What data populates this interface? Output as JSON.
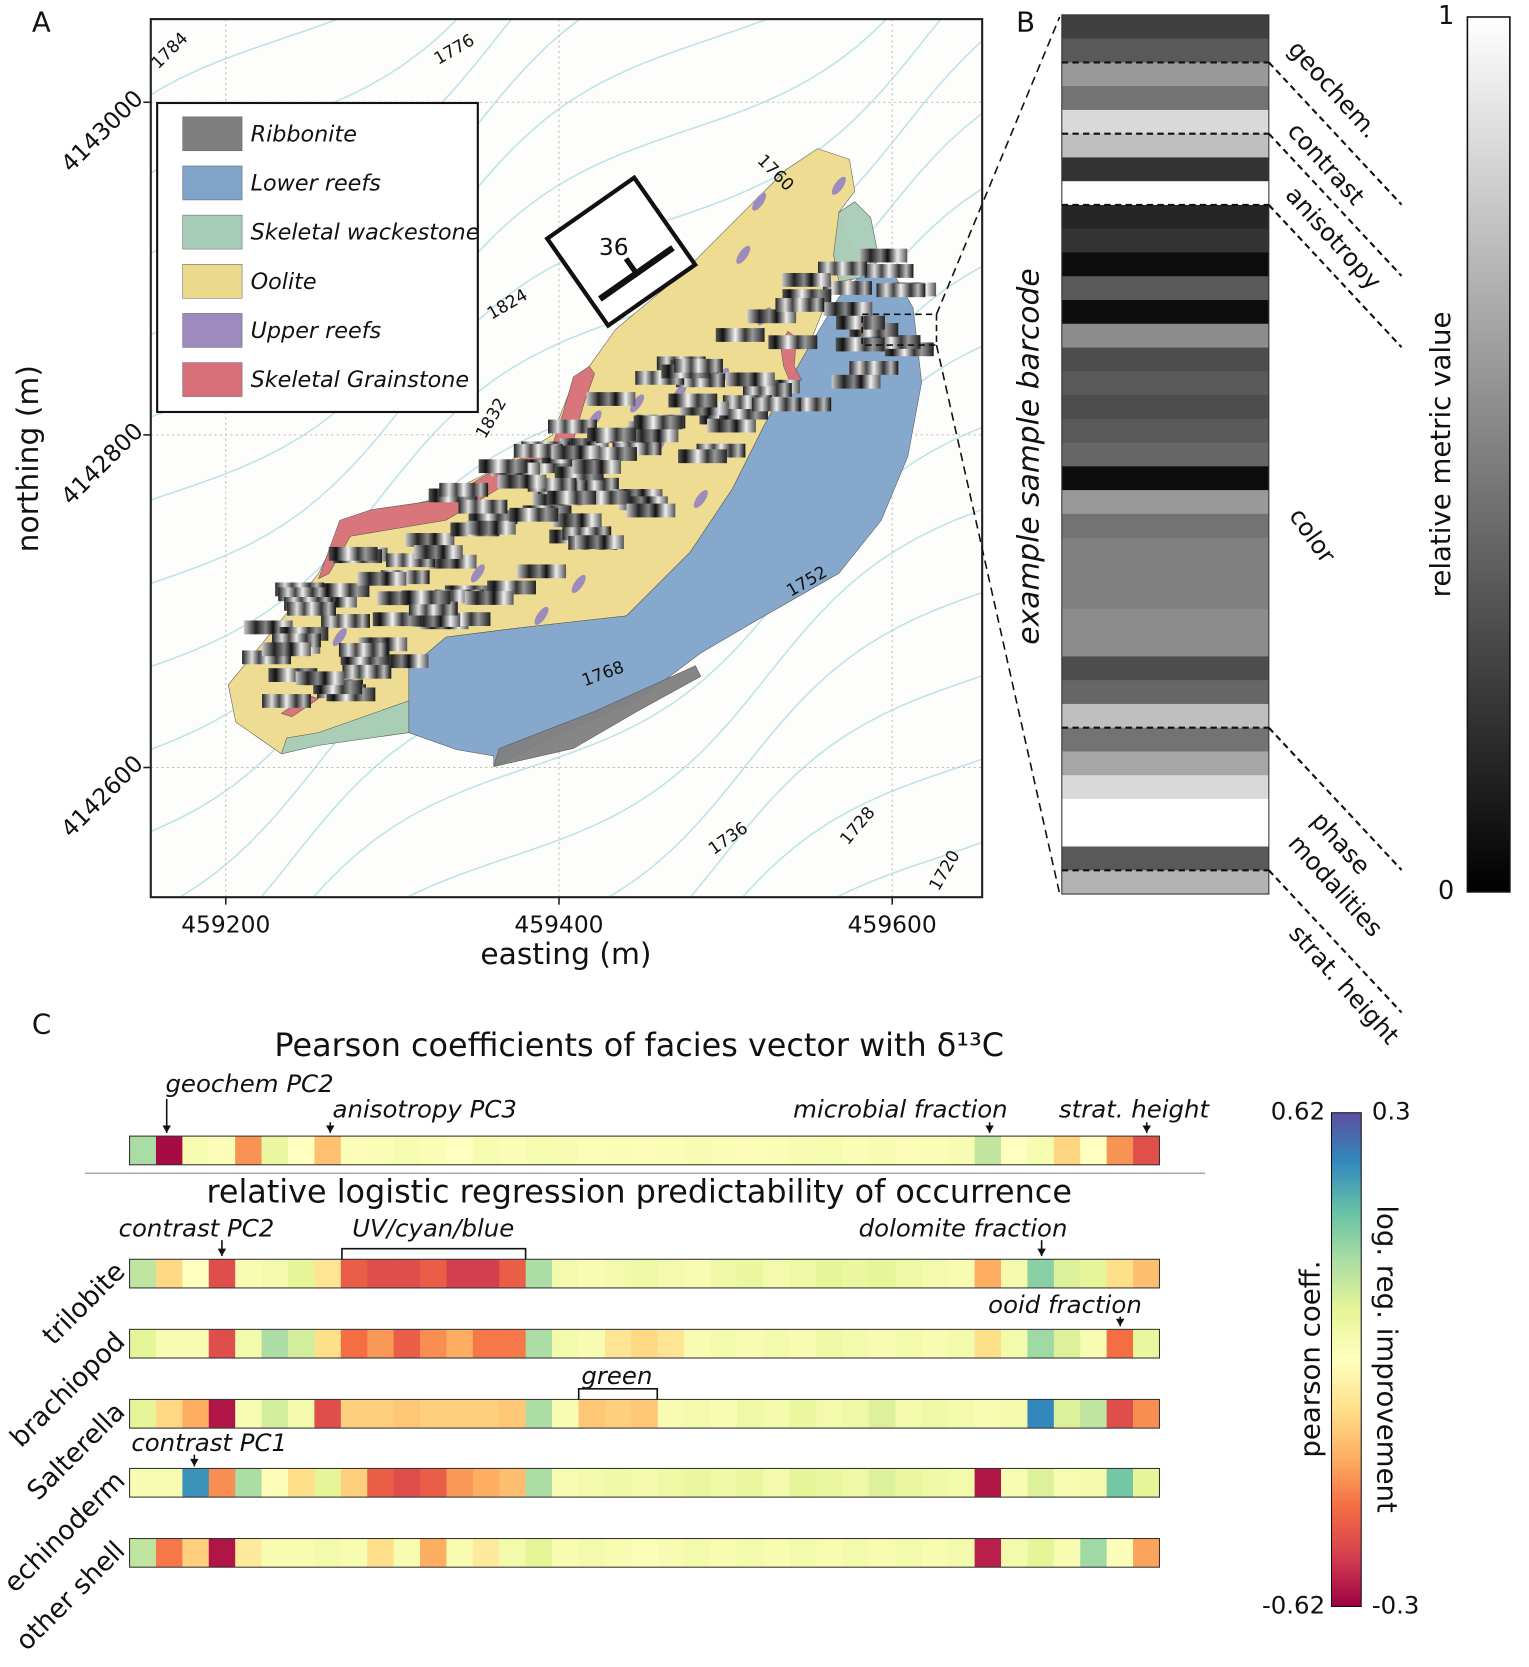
{
  "chart_data": [
    {
      "type": "map",
      "panel": "A",
      "xlabel": "easting (m)",
      "ylabel": "northing (m)",
      "xlim": [
        459155,
        459654
      ],
      "ylim": [
        4142522,
        4143050
      ],
      "xticks": [
        459200,
        459400,
        459600
      ],
      "yticks": [
        4142600,
        4142800,
        4143000
      ],
      "grid": true,
      "legend": [
        {
          "name": "Ribbonite",
          "color": "#7f7f7f"
        },
        {
          "name": "Lower reefs",
          "color": "#7fa3c9"
        },
        {
          "name": "Skeletal wackestone",
          "color": "#a7ccb7"
        },
        {
          "name": "Oolite",
          "color": "#ecda8c"
        },
        {
          "name": "Upper reefs",
          "color": "#9e8bbd"
        },
        {
          "name": "Skeletal Grainstone",
          "color": "#d8707a"
        }
      ],
      "contour_labels": [
        "1784",
        "1776",
        "1760",
        "1824",
        "1832",
        "1736",
        "1728",
        "1720",
        "1768",
        "1752"
      ],
      "strike_dip_label": "36"
    },
    {
      "type": "barcode",
      "panel": "B",
      "ylabel": "example sample barcode",
      "colormap": "gray",
      "values": [
        0.25,
        0.35,
        0.6,
        0.45,
        0.85,
        0.75,
        0.2,
        1.0,
        0.15,
        0.2,
        0.05,
        0.35,
        0.05,
        0.55,
        0.3,
        0.35,
        0.3,
        0.35,
        0.4,
        0.05,
        0.6,
        0.45,
        0.5,
        0.5,
        0.5,
        0.55,
        0.55,
        0.3,
        0.4,
        0.75,
        0.45,
        0.65,
        0.85,
        1.0,
        1.0,
        0.35,
        0.7
      ],
      "groups": [
        "geochem.",
        "contrast",
        "anisotropy",
        "color",
        "phase",
        "modalities",
        "strat. height"
      ],
      "colorbar_label": "relative metric value",
      "clim": [
        0,
        1
      ],
      "cticks": [
        0,
        1
      ]
    },
    {
      "type": "heatmap",
      "panel": "C",
      "title": "Pearson coefficients of facies vector with δ¹³C",
      "colormap": "Spectral",
      "values": [
        0.25,
        -0.6,
        0.05,
        0.02,
        -0.3,
        0.1,
        0,
        -0.2,
        0.02,
        0.03,
        0.05,
        0.03,
        0,
        0.05,
        0.03,
        0.05,
        0.04,
        0.02,
        0.03,
        0.02,
        0.03,
        0.04,
        0.03,
        0.02,
        0.03,
        0.04,
        0.05,
        0.03,
        0.04,
        0.02,
        0.03,
        0.04,
        0.2,
        0,
        0.05,
        -0.15,
        0,
        -0.3,
        -0.45
      ],
      "annotations": [
        "geochem PC2",
        "anisotropy PC3",
        "microbial fraction",
        "strat. height"
      ],
      "colorbar_label": "pearson coeff.",
      "clim": [
        -0.62,
        0.62
      ],
      "cticks": [
        -0.62,
        0.62
      ]
    },
    {
      "type": "heatmap",
      "title": "relative logistic regression predictability of occurrence",
      "colormap": "Spectral",
      "rows": [
        {
          "name": "trilobite",
          "values": [
            0.1,
            -0.07,
            0,
            -0.22,
            0.02,
            0.03,
            0.06,
            -0.05,
            -0.2,
            -0.22,
            -0.22,
            -0.2,
            -0.24,
            -0.24,
            -0.2,
            0.12,
            0.03,
            0.02,
            0.03,
            0.04,
            0.03,
            0.02,
            0.04,
            0.05,
            0.03,
            0.04,
            0.06,
            0.05,
            0.06,
            0.04,
            0.03,
            0.02,
            -0.12,
            0.03,
            0.15,
            0.07,
            0.06,
            -0.06,
            -0.1
          ]
        },
        {
          "name": "brachiopod",
          "values": [
            0.06,
            0.02,
            0.02,
            -0.22,
            0.03,
            0.12,
            0.08,
            -0.06,
            -0.18,
            -0.14,
            -0.2,
            -0.15,
            -0.12,
            -0.17,
            -0.17,
            0.12,
            0.03,
            0.02,
            -0.05,
            -0.07,
            -0.05,
            0.02,
            0.03,
            0.02,
            0.03,
            0.02,
            0.04,
            0.03,
            0.02,
            0.03,
            0.02,
            0.03,
            -0.06,
            0.03,
            0.13,
            0.07,
            0.02,
            -0.18,
            0.05
          ]
        },
        {
          "name": "Salterella",
          "values": [
            0.06,
            -0.07,
            -0.12,
            -0.28,
            0.02,
            0.08,
            0.03,
            -0.22,
            -0.08,
            -0.08,
            -0.09,
            -0.08,
            -0.08,
            -0.08,
            -0.09,
            0.12,
            0.02,
            -0.09,
            -0.08,
            -0.09,
            0.02,
            0.03,
            0.02,
            0.04,
            0.03,
            0.05,
            0.03,
            0.04,
            0.07,
            0.03,
            0.04,
            0.03,
            0.02,
            0.03,
            0.24,
            0.07,
            0.1,
            -0.22,
            -0.15
          ]
        },
        {
          "name": "echinoderm",
          "values": [
            0.02,
            0.02,
            0.23,
            -0.15,
            0.12,
            0.01,
            -0.06,
            0.06,
            -0.08,
            -0.2,
            -0.22,
            -0.2,
            -0.14,
            -0.12,
            -0.1,
            0.12,
            0.02,
            0.03,
            0.04,
            0.03,
            0.04,
            0.05,
            0.04,
            0.05,
            0.03,
            0.06,
            0.05,
            0.04,
            0.07,
            0.05,
            0.04,
            0.03,
            -0.28,
            0.02,
            0.07,
            0.02,
            0.03,
            0.17,
            0.06
          ]
        },
        {
          "name": "other shell",
          "values": [
            0.1,
            -0.17,
            -0.08,
            -0.28,
            -0.04,
            0.02,
            0.02,
            0.03,
            0.02,
            -0.06,
            0.02,
            -0.12,
            0.02,
            -0.04,
            0.03,
            0.06,
            0.02,
            0.03,
            0.02,
            0.01,
            0.02,
            0.03,
            0.02,
            0.03,
            0.02,
            0.03,
            0.02,
            0.03,
            0.02,
            0.03,
            0.02,
            0.03,
            -0.27,
            0.03,
            0.06,
            0.02,
            0.13,
            0.01,
            -0.13
          ]
        }
      ],
      "annotations": [
        "contrast PC2",
        "UV/cyan/blue",
        "dolomite fraction",
        "ooid fraction",
        "green",
        "contrast PC1"
      ],
      "colorbar_label": "log. reg. improvement",
      "clim": [
        -0.3,
        0.3
      ],
      "cticks": [
        -0.3,
        0.3
      ]
    }
  ]
}
